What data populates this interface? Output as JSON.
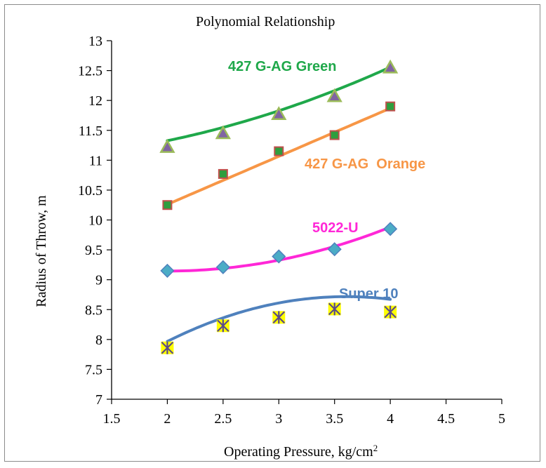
{
  "chart_data": {
    "type": "scatter",
    "title": "Polynomial Relationship",
    "xlabel": "Operating Pressure, kg/cm",
    "xlabel_sup": "2",
    "ylabel": "Radius of Throw, m",
    "xlim": [
      1.5,
      5
    ],
    "ylim": [
      7,
      13
    ],
    "xticks": [
      "1.5",
      "2",
      "2.5",
      "3",
      "3.5",
      "4",
      "4.5",
      "5"
    ],
    "yticks": [
      "7",
      "7.5",
      "8",
      "8.5",
      "9",
      "9.5",
      "10",
      "10.5",
      "11",
      "11.5",
      "12",
      "12.5",
      "13"
    ],
    "grid": false,
    "series": [
      {
        "name": "427 G-AG Green",
        "x": [
          2,
          2.5,
          3,
          3.5,
          4
        ],
        "values": [
          11.22,
          11.45,
          11.77,
          12.07,
          12.55
        ],
        "fit": [
          0.1143,
          -0.0703,
          11.01
        ],
        "line_color": "#1fa84a",
        "marker": "triangle",
        "marker_fill": "#8064a2",
        "marker_edge": "#9bbb59"
      },
      {
        "name": "427 G-AG  Orange",
        "x": [
          2,
          2.5,
          3,
          3.5,
          4
        ],
        "values": [
          10.25,
          10.77,
          11.15,
          11.42,
          11.9
        ],
        "fit": [
          0,
          0.805,
          8.65
        ],
        "line_color": "#f79646",
        "marker": "square",
        "marker_fill": "#2e9e3e",
        "marker_edge": "#c0504d"
      },
      {
        "name": "5022-U",
        "x": [
          2,
          2.5,
          3,
          3.5,
          4
        ],
        "values": [
          9.15,
          9.21,
          9.39,
          9.51,
          9.85
        ],
        "fit": [
          0.1857,
          -0.7471,
          9.8974
        ],
        "line_color": "#ff27d7",
        "marker": "diamond",
        "marker_fill": "#4bacc6",
        "marker_edge": "#4f81bd"
      },
      {
        "name": "Super 10",
        "x": [
          2,
          2.5,
          3,
          3.5,
          4
        ],
        "values": [
          7.86,
          8.23,
          8.37,
          8.51,
          8.46
        ],
        "fit": [
          -0.2914,
          2.1006,
          4.9318
        ],
        "line_color": "#4f81bd",
        "marker": "star",
        "marker_fill": "#ffff00",
        "marker_edge": "#5a4a8a"
      }
    ]
  }
}
